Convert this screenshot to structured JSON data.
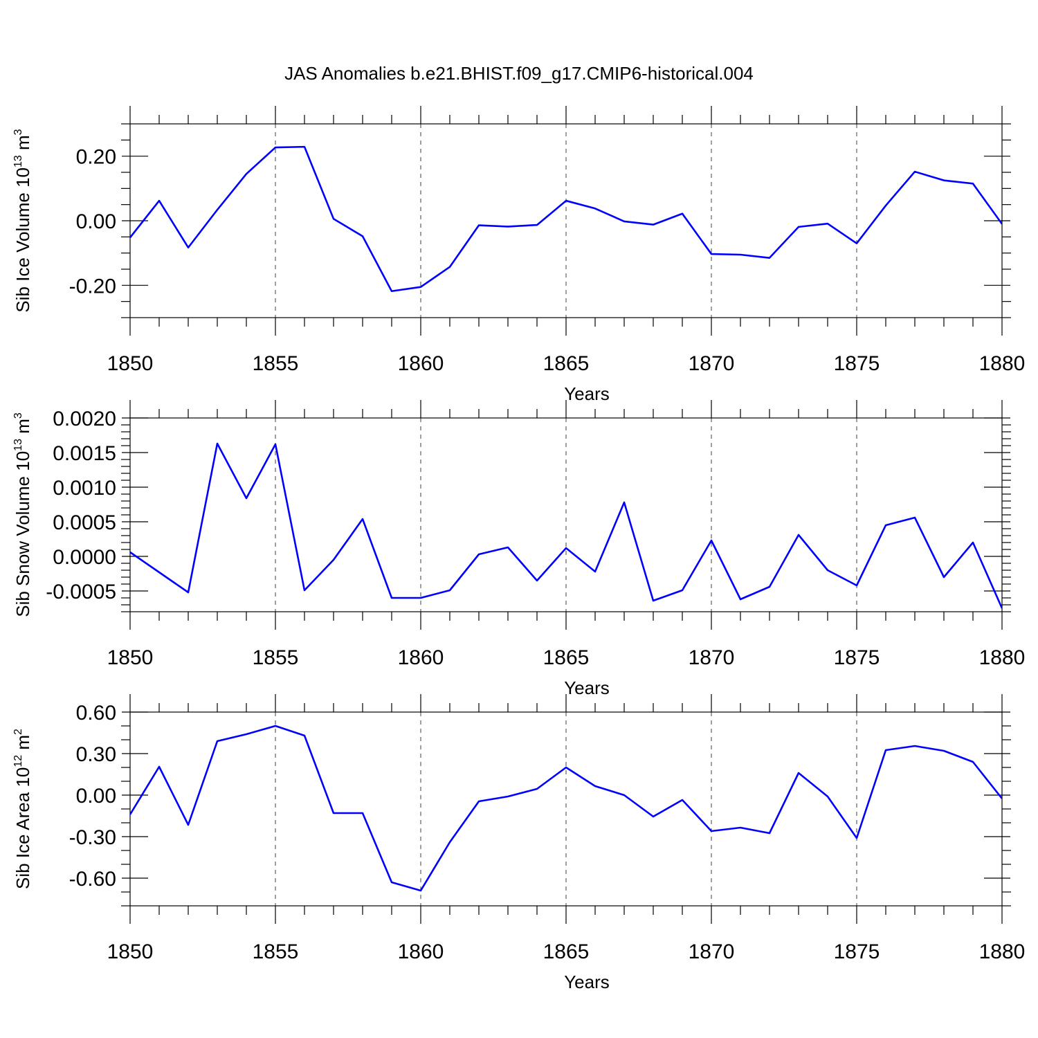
{
  "figure_title": "JAS Anomalies b.e21.BHIST.f09_g17.CMIP6-historical.004",
  "colors": {
    "series": "#0000ff",
    "axes": "#000000",
    "background": "#ffffff"
  },
  "chart_data": [
    {
      "type": "line",
      "name": "ice-volume",
      "title": "JAS Anomalies b.e21.BHIST.f09_g17.CMIP6-historical.004",
      "ylabel": {
        "base": "Sib Ice Volume 10",
        "exp": "13",
        "unit": " m",
        "unit_exp": "3"
      },
      "xlabel": "",
      "xlim": [
        1850,
        1880
      ],
      "ylim": [
        -0.3,
        0.3
      ],
      "yticks": [
        -0.2,
        0,
        0.2
      ],
      "ytick_labels": [
        "-0.20",
        "0.00",
        "0.20"
      ],
      "yminor": 0.05,
      "xticks": [
        1850,
        1855,
        1860,
        1865,
        1870,
        1875,
        1880
      ],
      "xtick_labels": [
        "1850",
        "1855",
        "1860",
        "1865",
        "1870",
        "1875",
        "1880"
      ],
      "grid": "vertical dashed at major x ticks",
      "x": [
        1850,
        1851,
        1852,
        1853,
        1854,
        1855,
        1856,
        1857,
        1858,
        1859,
        1860,
        1861,
        1862,
        1863,
        1864,
        1865,
        1866,
        1867,
        1868,
        1869,
        1870,
        1871,
        1872,
        1873,
        1874,
        1875,
        1876,
        1877,
        1878,
        1879,
        1880
      ],
      "y": [
        -0.052,
        0.062,
        -0.083,
        0.034,
        0.145,
        0.227,
        0.229,
        0.006,
        -0.048,
        -0.218,
        -0.205,
        -0.143,
        -0.014,
        -0.018,
        -0.013,
        0.062,
        0.038,
        -0.002,
        -0.012,
        0.022,
        -0.103,
        -0.105,
        -0.115,
        -0.019,
        -0.009,
        -0.07,
        0.047,
        0.152,
        0.125,
        0.115,
        -0.01
      ]
    },
    {
      "type": "line",
      "name": "snow-volume",
      "ylabel": {
        "base": "Sib Snow Volume 10",
        "exp": "13",
        "unit": " m",
        "unit_exp": "3"
      },
      "xlabel": "Years",
      "xlim": [
        1850,
        1880
      ],
      "ylim": [
        -0.0008,
        0.002
      ],
      "yticks": [
        -0.0005,
        0,
        0.0005,
        0.001,
        0.0015,
        0.002
      ],
      "ytick_labels": [
        "-0.0005",
        "0.0000",
        "0.0005",
        "0.0010",
        "0.0015",
        "0.0020"
      ],
      "yminor": 0.0001,
      "xticks": [
        1850,
        1855,
        1860,
        1865,
        1870,
        1875,
        1880
      ],
      "xtick_labels": [
        "1850",
        "1855",
        "1860",
        "1865",
        "1870",
        "1875",
        "1880"
      ],
      "grid": "vertical dashed at major x ticks",
      "x": [
        1850,
        1851,
        1852,
        1853,
        1854,
        1855,
        1856,
        1857,
        1858,
        1859,
        1860,
        1861,
        1862,
        1863,
        1864,
        1865,
        1866,
        1867,
        1868,
        1869,
        1870,
        1871,
        1872,
        1873,
        1874,
        1875,
        1876,
        1877,
        1878,
        1879,
        1880
      ],
      "y": [
        6e-05,
        -0.00023,
        -0.00052,
        0.00163,
        0.00084,
        0.00162,
        -0.00049,
        -5e-05,
        0.00054,
        -0.0006,
        -0.0006,
        -0.00049,
        3e-05,
        0.00013,
        -0.00035,
        0.00012,
        -0.00022,
        0.00078,
        -0.00064,
        -0.00049,
        0.00023,
        -0.00062,
        -0.00044,
        0.00031,
        -0.0002,
        -0.00042,
        0.00045,
        0.00056,
        -0.0003,
        0.0002,
        -0.00075
      ]
    },
    {
      "type": "line",
      "name": "ice-area",
      "ylabel": {
        "base": "Sib Ice Area 10",
        "exp": "12",
        "unit": " m",
        "unit_exp": "2"
      },
      "xlabel": "Years",
      "xlim": [
        1850,
        1880
      ],
      "ylim": [
        -0.8,
        0.6
      ],
      "yticks": [
        -0.6,
        -0.3,
        0,
        0.3,
        0.6
      ],
      "ytick_labels": [
        "-0.60",
        "-0.30",
        "0.00",
        "0.30",
        "0.60"
      ],
      "yminor": 0.1,
      "xticks": [
        1850,
        1855,
        1860,
        1865,
        1870,
        1875,
        1880
      ],
      "xtick_labels": [
        "1850",
        "1855",
        "1860",
        "1865",
        "1870",
        "1875",
        "1880"
      ],
      "grid": "vertical dashed at major x ticks",
      "x": [
        1850,
        1851,
        1852,
        1853,
        1854,
        1855,
        1856,
        1857,
        1858,
        1859,
        1860,
        1861,
        1862,
        1863,
        1864,
        1865,
        1866,
        1867,
        1868,
        1869,
        1870,
        1871,
        1872,
        1873,
        1874,
        1875,
        1876,
        1877,
        1878,
        1879,
        1880
      ],
      "y": [
        -0.14,
        0.205,
        -0.215,
        0.39,
        0.44,
        0.5,
        0.43,
        -0.13,
        -0.13,
        -0.63,
        -0.69,
        -0.34,
        -0.045,
        -0.01,
        0.045,
        0.2,
        0.065,
        0.0,
        -0.155,
        -0.035,
        -0.26,
        -0.235,
        -0.275,
        0.16,
        -0.01,
        -0.31,
        0.325,
        0.355,
        0.32,
        0.24,
        -0.025
      ]
    }
  ]
}
